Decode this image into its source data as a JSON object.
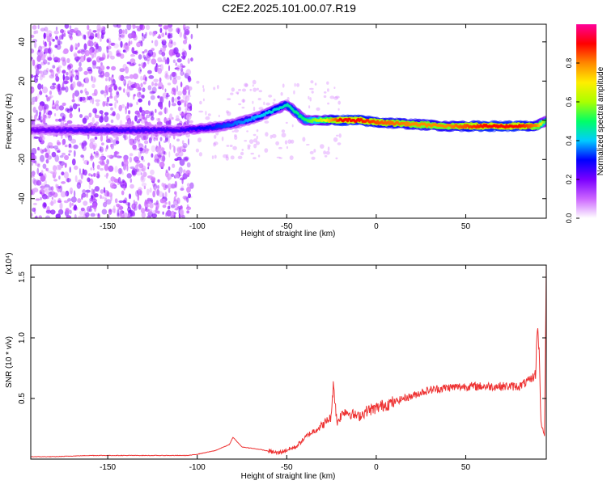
{
  "title": "C2E2.2025.101.00.07.R19",
  "chart_data": [
    {
      "type": "heatmap",
      "xlabel": "Height of straight line (km)",
      "ylabel": "Frequency (Hz)",
      "xlim": [
        -193,
        95
      ],
      "ylim": [
        -50,
        49
      ],
      "xticks": [
        -150,
        -100,
        -50,
        0,
        50
      ],
      "yticks": [
        -40,
        -20,
        0,
        20,
        40
      ],
      "colorbar": {
        "label": "Normalized spectral amplitude",
        "ticks": [
          0.0,
          0.2,
          0.4,
          0.6,
          0.8
        ],
        "range": [
          0,
          1
        ],
        "position": "right",
        "colormap": [
          "#ffffff",
          "#cc66ff",
          "#7b00ff",
          "#0000ff",
          "#00ccff",
          "#00ff66",
          "#aaff00",
          "#ffee00",
          "#ff8800",
          "#ff0000",
          "#ff0099"
        ]
      },
      "ridge": {
        "description_points_x": [
          -193,
          -160,
          -130,
          -110,
          -95,
          -80,
          -65,
          -50,
          -40,
          -30,
          -20,
          -10,
          0,
          20,
          40,
          60,
          80,
          90,
          95
        ],
        "description_points_y": [
          -5,
          -5,
          -5,
          -5,
          -4,
          -2,
          2,
          8,
          0,
          0,
          0,
          0,
          -1,
          -2,
          -3,
          -3,
          -3,
          -3,
          0
        ],
        "amplitude": [
          0.2,
          0.25,
          0.25,
          0.25,
          0.3,
          0.35,
          0.4,
          0.45,
          0.5,
          0.65,
          0.9,
          0.9,
          0.85,
          0.8,
          0.8,
          0.9,
          0.9,
          0.8,
          0.5
        ]
      },
      "grid": false
    },
    {
      "type": "line",
      "xlabel": "Height of straight line (km)",
      "ylabel": "SNR (10 * v/v)",
      "y_multiplier": "(x10⁴)",
      "xlim": [
        -193,
        95
      ],
      "ylim": [
        0,
        1.6
      ],
      "xticks": [
        -150,
        -100,
        -50,
        0,
        50
      ],
      "yticks": [
        0.5,
        1.0,
        1.5
      ],
      "series": [
        {
          "color": "#ee3333",
          "x": [
            -193,
            -180,
            -160,
            -140,
            -120,
            -105,
            -100,
            -90,
            -82,
            -80,
            -75,
            -65,
            -55,
            -45,
            -38,
            -30,
            -25,
            -24,
            -22,
            -18,
            -15,
            -10,
            -5,
            0,
            5,
            10,
            15,
            20,
            25,
            30,
            40,
            50,
            60,
            70,
            80,
            86,
            89,
            90,
            91,
            92,
            93,
            94,
            95
          ],
          "y": [
            0.02,
            0.02,
            0.03,
            0.03,
            0.03,
            0.03,
            0.04,
            0.07,
            0.12,
            0.18,
            0.1,
            0.08,
            0.05,
            0.1,
            0.2,
            0.28,
            0.35,
            0.65,
            0.3,
            0.4,
            0.38,
            0.35,
            0.4,
            0.42,
            0.45,
            0.47,
            0.5,
            0.52,
            0.55,
            0.57,
            0.59,
            0.6,
            0.6,
            0.6,
            0.6,
            0.65,
            0.7,
            1.1,
            0.9,
            0.3,
            0.25,
            0.2,
            1.55
          ]
        }
      ],
      "grid": false
    }
  ]
}
